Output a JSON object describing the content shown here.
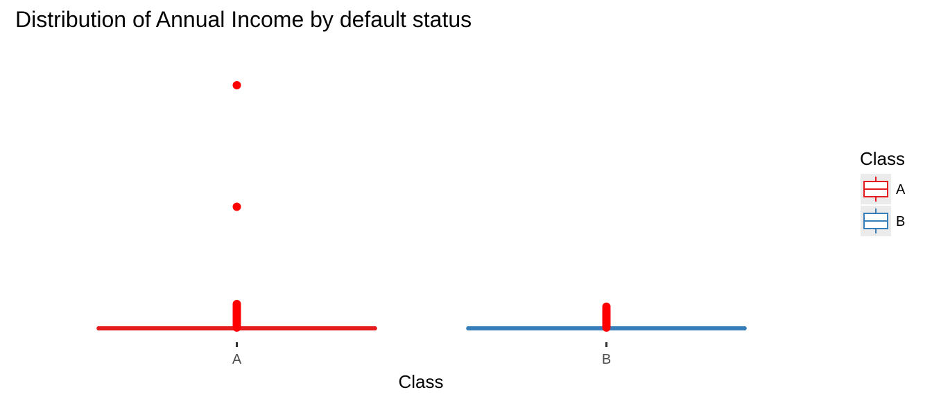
{
  "chart_data": {
    "type": "boxplot",
    "title": "Distribution of Annual Income by default status",
    "xlabel": "Class",
    "ylabel": "",
    "grid": false,
    "y_axis_labels_shown": false,
    "ylim": [
      0,
      100
    ],
    "categories": [
      "A",
      "B"
    ],
    "series": [
      {
        "name": "A",
        "color": "#e41a1c",
        "box": {
          "min": 0,
          "q1": 0,
          "median": 0,
          "q3": 0,
          "max": 0
        },
        "outliers": [
          0.3,
          0.8,
          1.3,
          1.8,
          2.4,
          3.0,
          3.6,
          4.2,
          4.8,
          5.4,
          6.0,
          6.6,
          7.2,
          7.8,
          8.4,
          9.0,
          45,
          90
        ]
      },
      {
        "name": "B",
        "color": "#377eb8",
        "box": {
          "min": 0,
          "q1": 0,
          "median": 0,
          "q3": 0,
          "max": 0
        },
        "outliers": [
          0.3,
          0.8,
          1.3,
          1.8,
          2.4,
          3.0,
          3.6,
          4.2,
          4.8,
          5.4,
          6.0,
          6.6,
          7.2,
          8.0
        ],
        "outlier_color": "#ff0000"
      }
    ],
    "legend": {
      "title": "Class",
      "position": "right",
      "entries": [
        {
          "label": "A",
          "color": "#e41a1c"
        },
        {
          "label": "B",
          "color": "#377eb8"
        }
      ]
    }
  }
}
